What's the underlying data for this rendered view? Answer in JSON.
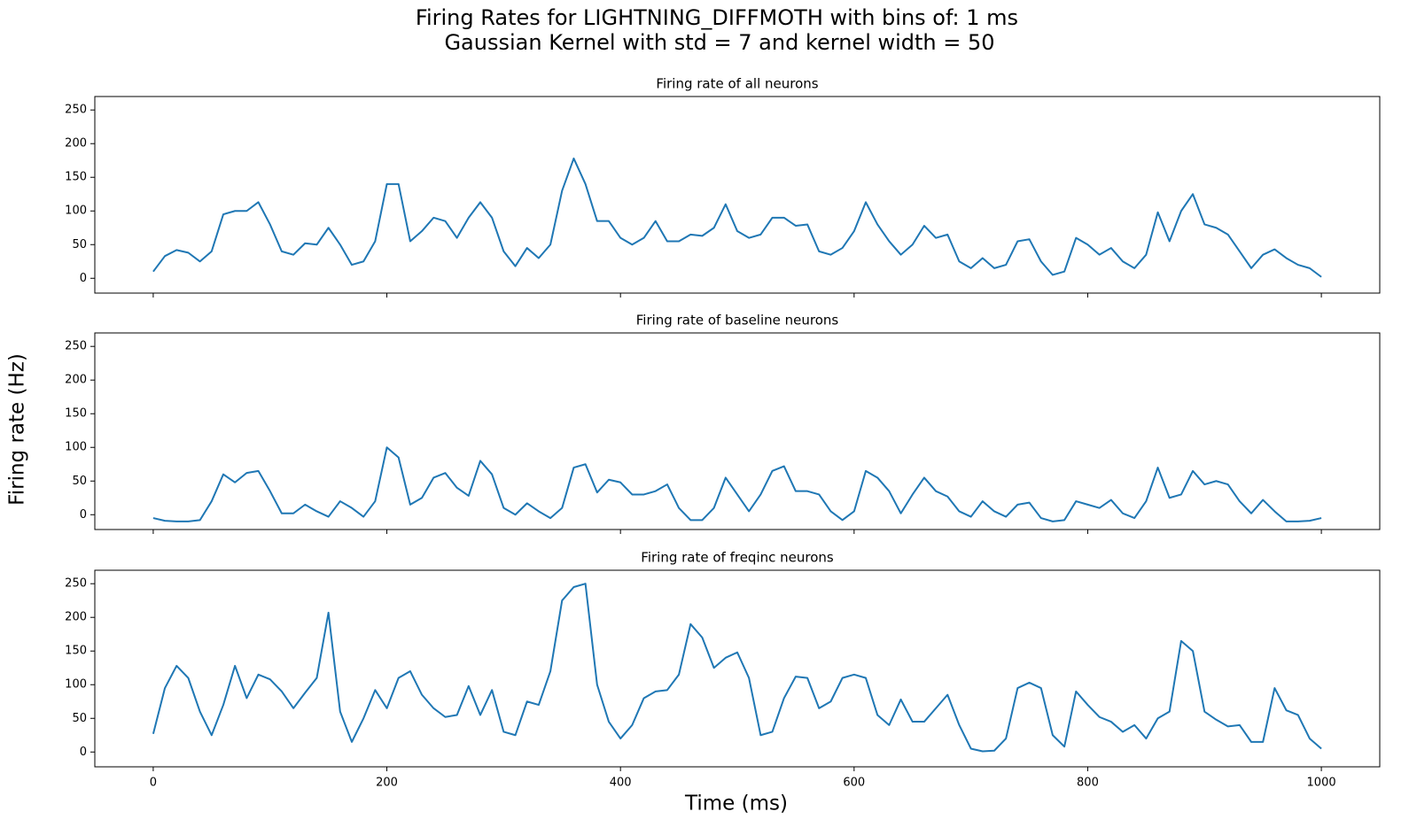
{
  "title": "Firing Rates for LIGHTNING_DIFFMOTH with bins of: 1 ms",
  "subtitle": "Gaussian Kernel with std = 7 and kernel width = 50",
  "xlabel": "Time (ms)",
  "ylabel": "Firing rate (Hz)",
  "chart_data": [
    {
      "type": "line",
      "title": "Firing rate of all neurons",
      "color": "#1f77b4",
      "x": [
        0,
        10,
        20,
        30,
        40,
        50,
        60,
        70,
        80,
        90,
        100,
        110,
        120,
        130,
        140,
        150,
        160,
        170,
        180,
        190,
        200,
        210,
        220,
        230,
        240,
        250,
        260,
        270,
        280,
        290,
        300,
        310,
        320,
        330,
        340,
        350,
        360,
        370,
        380,
        390,
        400,
        410,
        420,
        430,
        440,
        450,
        460,
        470,
        480,
        490,
        500,
        510,
        520,
        530,
        540,
        550,
        560,
        570,
        580,
        590,
        600,
        610,
        620,
        630,
        640,
        650,
        660,
        670,
        680,
        690,
        700,
        710,
        720,
        730,
        740,
        750,
        760,
        770,
        780,
        790,
        800,
        810,
        820,
        830,
        840,
        850,
        860,
        870,
        880,
        890,
        900,
        910,
        920,
        930,
        940,
        950,
        960,
        970,
        980,
        990,
        1000
      ],
      "values": [
        10,
        33,
        42,
        38,
        25,
        40,
        95,
        100,
        100,
        113,
        80,
        40,
        35,
        52,
        50,
        75,
        50,
        20,
        25,
        55,
        140,
        140,
        55,
        70,
        90,
        85,
        60,
        90,
        113,
        90,
        40,
        18,
        45,
        30,
        50,
        130,
        178,
        140,
        85,
        85,
        60,
        50,
        60,
        85,
        55,
        55,
        65,
        63,
        75,
        110,
        70,
        60,
        65,
        90,
        90,
        78,
        80,
        40,
        35,
        45,
        70,
        113,
        80,
        55,
        35,
        50,
        78,
        60,
        65,
        25,
        15,
        30,
        15,
        20,
        55,
        58,
        25,
        5,
        10,
        60,
        50,
        35,
        45,
        25,
        15,
        35,
        98,
        55,
        100,
        125,
        80,
        75,
        65,
        40,
        15,
        35,
        43,
        30,
        20,
        15,
        2
      ],
      "xlim": [
        -50,
        1050
      ],
      "ylim": [
        -22,
        270
      ],
      "xticks": [
        0,
        200,
        400,
        600,
        800,
        1000
      ],
      "yticks": [
        0,
        50,
        100,
        150,
        200,
        250
      ]
    },
    {
      "type": "line",
      "title": "Firing rate of baseline neurons",
      "color": "#1f77b4",
      "x": [
        0,
        10,
        20,
        30,
        40,
        50,
        60,
        70,
        80,
        90,
        100,
        110,
        120,
        130,
        140,
        150,
        160,
        170,
        180,
        190,
        200,
        210,
        220,
        230,
        240,
        250,
        260,
        270,
        280,
        290,
        300,
        310,
        320,
        330,
        340,
        350,
        360,
        370,
        380,
        390,
        400,
        410,
        420,
        430,
        440,
        450,
        460,
        470,
        480,
        490,
        500,
        510,
        520,
        530,
        540,
        550,
        560,
        570,
        580,
        590,
        600,
        610,
        620,
        630,
        640,
        650,
        660,
        670,
        680,
        690,
        700,
        710,
        720,
        730,
        740,
        750,
        760,
        770,
        780,
        790,
        800,
        810,
        820,
        830,
        840,
        850,
        860,
        870,
        880,
        890,
        900,
        910,
        920,
        930,
        940,
        950,
        960,
        970,
        980,
        990,
        1000
      ],
      "values": [
        -5,
        -9,
        -10,
        -10,
        -8,
        20,
        60,
        48,
        62,
        65,
        35,
        2,
        2,
        15,
        5,
        -3,
        20,
        10,
        -3,
        20,
        100,
        85,
        15,
        25,
        55,
        62,
        40,
        28,
        80,
        60,
        10,
        0,
        17,
        5,
        -5,
        10,
        70,
        75,
        33,
        52,
        48,
        30,
        30,
        35,
        45,
        10,
        -8,
        -8,
        10,
        55,
        30,
        5,
        30,
        65,
        72,
        35,
        35,
        30,
        5,
        -8,
        5,
        65,
        55,
        35,
        2,
        30,
        55,
        35,
        27,
        5,
        -3,
        20,
        5,
        -3,
        15,
        18,
        -5,
        -10,
        -8,
        20,
        15,
        10,
        22,
        2,
        -5,
        20,
        70,
        25,
        30,
        65,
        45,
        50,
        45,
        20,
        2,
        22,
        5,
        -10,
        -10,
        -9,
        -5
      ],
      "xlim": [
        -50,
        1050
      ],
      "ylim": [
        -22,
        270
      ],
      "xticks": [
        0,
        200,
        400,
        600,
        800,
        1000
      ],
      "yticks": [
        0,
        50,
        100,
        150,
        200,
        250
      ]
    },
    {
      "type": "line",
      "title": "Firing rate of freqinc neurons",
      "color": "#1f77b4",
      "x": [
        0,
        10,
        20,
        30,
        40,
        50,
        60,
        70,
        80,
        90,
        100,
        110,
        120,
        130,
        140,
        150,
        160,
        170,
        180,
        190,
        200,
        210,
        220,
        230,
        240,
        250,
        260,
        270,
        280,
        290,
        300,
        310,
        320,
        330,
        340,
        350,
        360,
        370,
        380,
        390,
        400,
        410,
        420,
        430,
        440,
        450,
        460,
        470,
        480,
        490,
        500,
        510,
        520,
        530,
        540,
        550,
        560,
        570,
        580,
        590,
        600,
        610,
        620,
        630,
        640,
        650,
        660,
        670,
        680,
        690,
        700,
        710,
        720,
        730,
        740,
        750,
        760,
        770,
        780,
        790,
        800,
        810,
        820,
        830,
        840,
        850,
        860,
        870,
        880,
        890,
        900,
        910,
        920,
        930,
        940,
        950,
        960,
        970,
        980,
        990,
        1000
      ],
      "values": [
        27,
        95,
        128,
        110,
        60,
        25,
        70,
        128,
        80,
        115,
        108,
        90,
        65,
        88,
        110,
        207,
        60,
        15,
        50,
        92,
        65,
        110,
        120,
        85,
        65,
        52,
        55,
        98,
        55,
        92,
        30,
        25,
        75,
        70,
        120,
        225,
        245,
        250,
        100,
        45,
        20,
        40,
        80,
        90,
        92,
        115,
        190,
        170,
        125,
        140,
        148,
        110,
        25,
        30,
        80,
        112,
        110,
        65,
        75,
        110,
        115,
        110,
        55,
        40,
        78,
        45,
        45,
        65,
        85,
        40,
        5,
        1,
        2,
        20,
        95,
        103,
        95,
        25,
        8,
        90,
        70,
        52,
        45,
        30,
        40,
        20,
        50,
        60,
        165,
        150,
        60,
        48,
        38,
        40,
        15,
        15,
        95,
        62,
        55,
        20,
        5
      ],
      "xlim": [
        -50,
        1050
      ],
      "ylim": [
        -22,
        270
      ],
      "xticks": [
        0,
        200,
        400,
        600,
        800,
        1000
      ],
      "yticks": [
        0,
        50,
        100,
        150,
        200,
        250
      ]
    }
  ]
}
